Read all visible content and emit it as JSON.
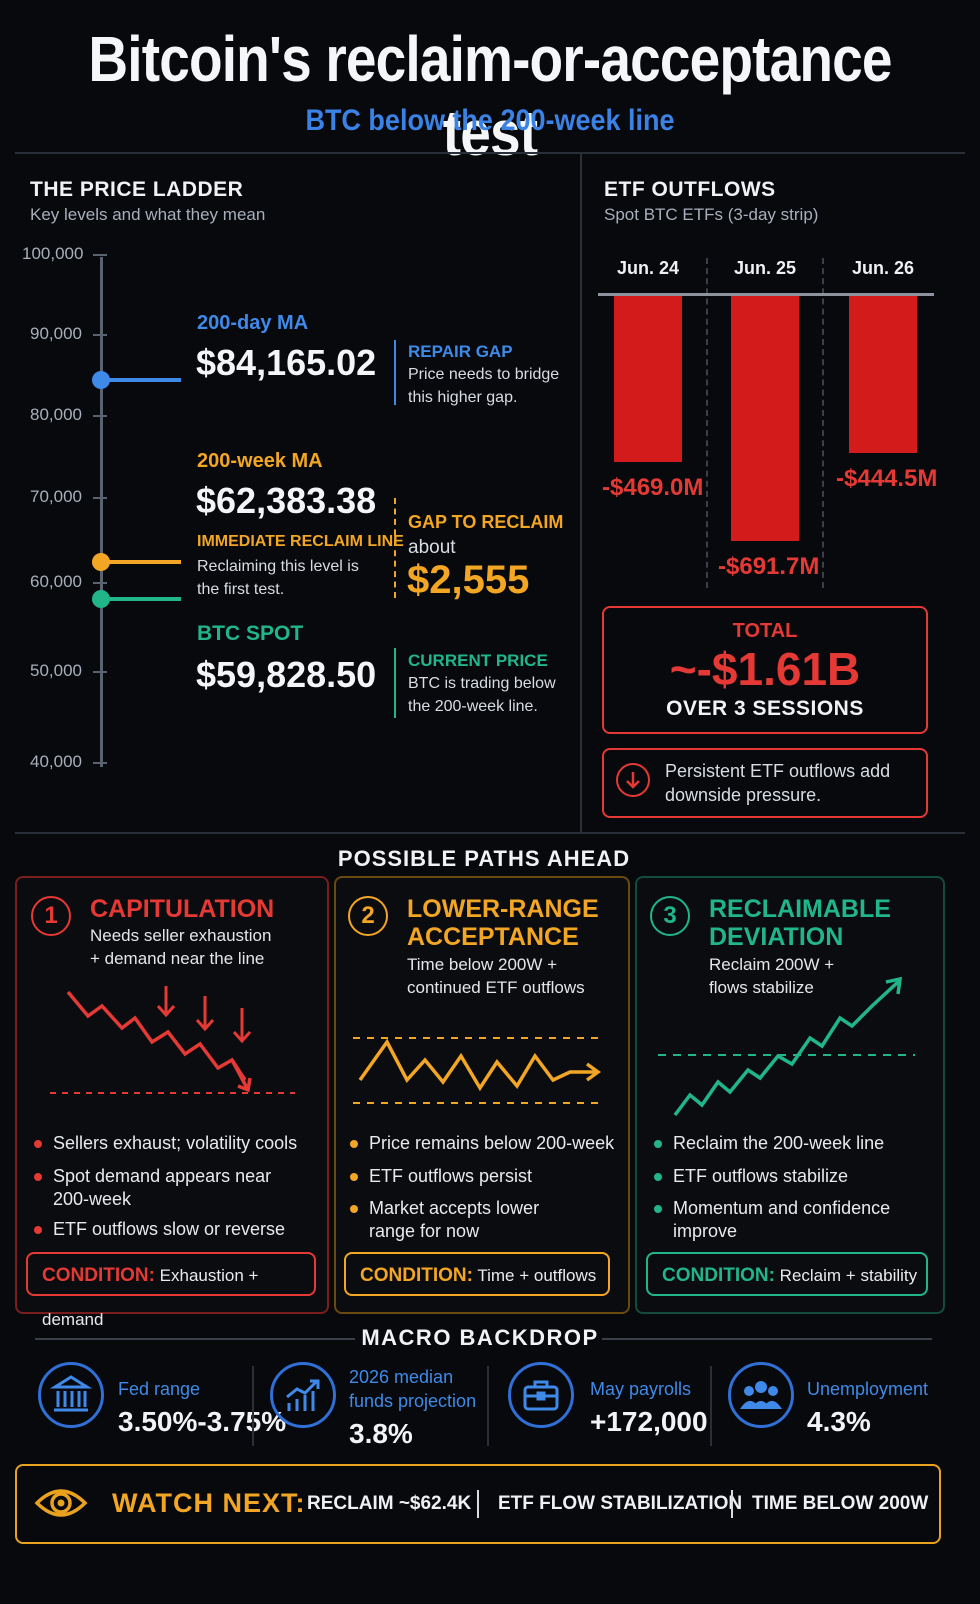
{
  "header": {
    "title": "Bitcoin's reclaim-or-acceptance test",
    "subtitle": "BTC below the 200-week line"
  },
  "ladder": {
    "title": "THE PRICE LADDER",
    "subtitle": "Key levels and what they mean",
    "ticks": [
      "100,000",
      "90,000",
      "80,000",
      "70,000",
      "60,000",
      "50,000",
      "40,000"
    ],
    "ma200d": {
      "label": "200-day MA",
      "value": "$84,165.02"
    },
    "ma200w": {
      "label": "200-week MA",
      "value": "$62,383.38",
      "tag": "IMMEDIATE RECLAIM LINE",
      "tag_text_1": "Reclaiming this level is",
      "tag_text_2": "the first test."
    },
    "spot": {
      "label": "BTC SPOT",
      "value": "$59,828.50"
    },
    "repair_gap": {
      "title": "REPAIR GAP",
      "line1": "Price needs to bridge",
      "line2": "this higher gap."
    },
    "gap_reclaim": {
      "title": "GAP TO RECLAIM",
      "about": "about",
      "value": "$2,555"
    },
    "current": {
      "title": "CURRENT PRICE",
      "line1": "BTC is trading below",
      "line2": "the 200-week line."
    },
    "colors": {
      "blue": "#3f8ae8",
      "orange": "#f2a623",
      "green": "#21b68a"
    }
  },
  "etf": {
    "title": "ETF OUTFLOWS",
    "subtitle": "Spot BTC ETFs (3-day strip)",
    "dates": [
      "Jun. 24",
      "Jun. 25",
      "Jun. 26"
    ],
    "labels": [
      "-$469.0M",
      "-$691.7M",
      "-$444.5M"
    ],
    "values_musd": [
      -469.0,
      -691.7,
      -444.5
    ],
    "total_label": "TOTAL",
    "total_value": "~-$1.61B",
    "total_sub": "OVER 3 SESSIONS",
    "note_line1": "Persistent ETF outflows add",
    "note_line2": "downside pressure."
  },
  "paths": {
    "title": "POSSIBLE PATHS AHEAD",
    "cards": [
      {
        "num": "1",
        "title1": "CAPITULATION",
        "title2": "",
        "sub1": "Needs seller exhaustion",
        "sub2": "+ demand near the line",
        "bullets": [
          [
            "Sellers exhaust; volatility cools"
          ],
          [
            "Spot demand appears near",
            "200-week"
          ],
          [
            "ETF outflows slow or reverse"
          ]
        ],
        "cond_label": "CONDITION:",
        "cond_text": "Exhaustion + demand",
        "color": "#e53935"
      },
      {
        "num": "2",
        "title1": "LOWER-RANGE",
        "title2": "ACCEPTANCE",
        "sub1": "Time below 200W +",
        "sub2": "continued ETF outflows",
        "bullets": [
          [
            "Price remains below 200-week"
          ],
          [
            "ETF outflows persist"
          ],
          [
            "Market accepts lower",
            "range for now"
          ]
        ],
        "cond_label": "CONDITION:",
        "cond_text": "Time + outflows",
        "color": "#f2a623"
      },
      {
        "num": "3",
        "title1": "RECLAIMABLE",
        "title2": "DEVIATION",
        "sub1": "Reclaim 200W +",
        "sub2": "flows stabilize",
        "bullets": [
          [
            "Reclaim the 200-week line"
          ],
          [
            "ETF outflows stabilize"
          ],
          [
            "Momentum and confidence",
            "improve"
          ]
        ],
        "cond_label": "CONDITION:",
        "cond_text": "Reclaim + stability",
        "color": "#21b68a"
      }
    ]
  },
  "macro": {
    "title": "MACRO BACKDROP",
    "items": [
      {
        "icon": "bank-icon",
        "label1": "Fed range",
        "label2": "",
        "value": "3.50%-3.75%"
      },
      {
        "icon": "chart-up-icon",
        "label1": "2026 median",
        "label2": "funds projection",
        "value": "3.8%"
      },
      {
        "icon": "briefcase-icon",
        "label1": "May payrolls",
        "label2": "",
        "value": "+172,000"
      },
      {
        "icon": "people-icon",
        "label1": "Unemployment",
        "label2": "",
        "value": "4.3%"
      }
    ]
  },
  "watch": {
    "label": "WATCH NEXT:",
    "items": [
      "RECLAIM ~$62.4K",
      "ETF FLOW STABILIZATION",
      "TIME BELOW 200W"
    ]
  }
}
